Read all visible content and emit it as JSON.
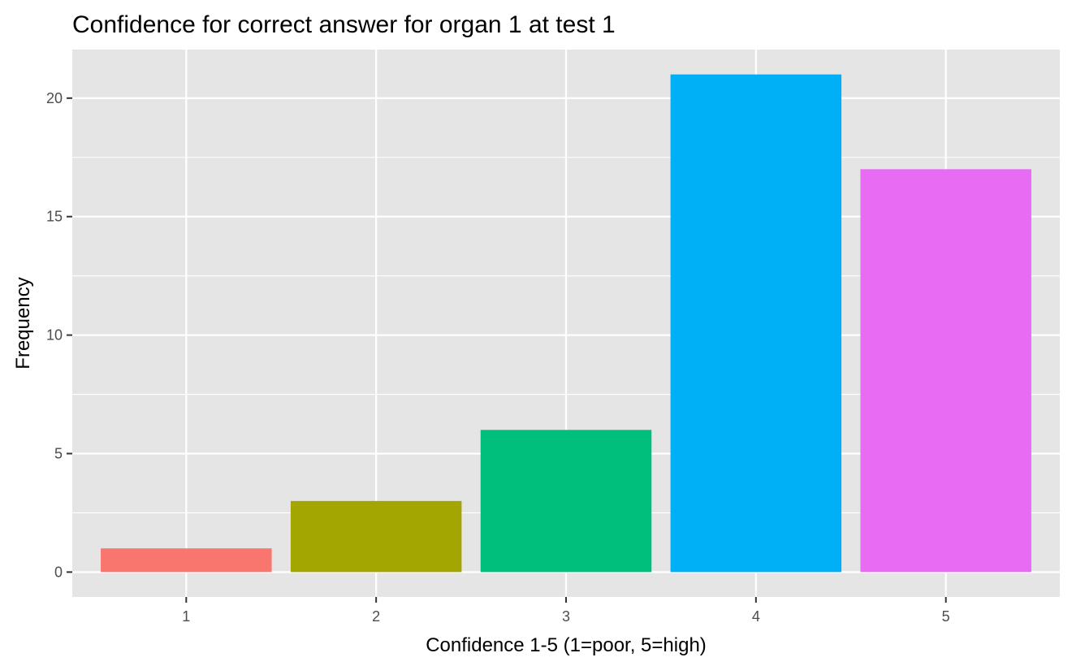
{
  "chart_data": {
    "type": "bar",
    "title": "Confidence for correct answer for organ 1 at test 1",
    "xlabel": "Confidence 1-5 (1=poor, 5=high)",
    "ylabel": "Frequency",
    "categories": [
      "1",
      "2",
      "3",
      "4",
      "5"
    ],
    "values": [
      1,
      3,
      6,
      21,
      17
    ],
    "colors": [
      "#F8766D",
      "#A3A500",
      "#00BF7D",
      "#00B0F6",
      "#E76BF3"
    ],
    "ylim": [
      -1.05,
      22.05
    ],
    "yticks": [
      0,
      5,
      10,
      15,
      20
    ],
    "grid": true,
    "background": "#E5E5E5"
  }
}
